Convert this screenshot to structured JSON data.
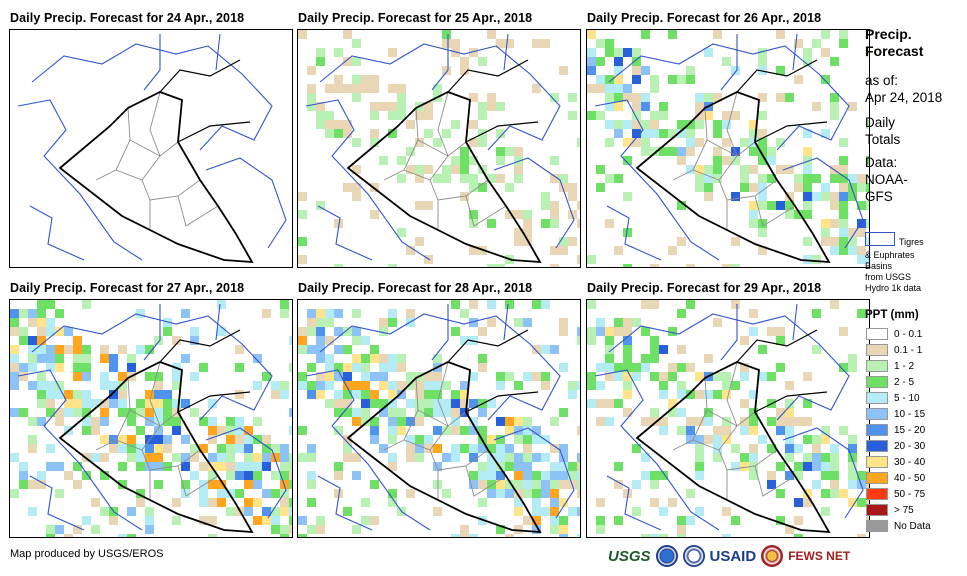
{
  "panels": [
    {
      "title": "Daily Precip. Forecast for 24 Apr., 2018",
      "rain_level": 0
    },
    {
      "title": "Daily Precip. Forecast for 25 Apr., 2018",
      "rain_level": 1
    },
    {
      "title": "Daily Precip. Forecast for 26 Apr., 2018",
      "rain_level": 2
    },
    {
      "title": "Daily Precip. Forecast for 27 Apr., 2018",
      "rain_level": 3
    },
    {
      "title": "Daily Precip. Forecast for 28 Apr., 2018",
      "rain_level": 3
    },
    {
      "title": "Daily Precip. Forecast for 29 Apr., 2018",
      "rain_level": 2
    }
  ],
  "legend": {
    "title_line1": "Precip.",
    "title_line2": "Forecast",
    "asof_label": "as of:",
    "asof_date": "Apr 24, 2018",
    "daily_line1": "Daily",
    "daily_line2": "Totals",
    "data_line1": "Data:",
    "data_line2": "NOAA-",
    "data_line3": "GFS",
    "basin_line1": "Tigres",
    "basin_line2": "& Euphrates",
    "basin_line3": "Basins",
    "basin_line4": "from USGS",
    "basin_line5": "Hydro 1k data",
    "ppt_title": "PPT (mm)",
    "classes": [
      {
        "label": "0 - 0.1",
        "color": "#ffffff"
      },
      {
        "label": "0.1 - 1",
        "color": "#e9d6b4"
      },
      {
        "label": "1 - 2",
        "color": "#b9f0b3"
      },
      {
        "label": "2 - 5",
        "color": "#6ee066"
      },
      {
        "label": "5 - 10",
        "color": "#b3ecf5"
      },
      {
        "label": "10 - 15",
        "color": "#8cc2f5"
      },
      {
        "label": "15 - 20",
        "color": "#4f93ec"
      },
      {
        "label": "20 - 30",
        "color": "#2860dc"
      },
      {
        "label": "30 - 40",
        "color": "#ffe48a"
      },
      {
        "label": "40 - 50",
        "color": "#ffa51f"
      },
      {
        "label": "50 - 75",
        "color": "#ff3a12"
      },
      {
        "label": "> 75",
        "color": "#a81818"
      },
      {
        "label": "No Data",
        "color": "#999999"
      }
    ]
  },
  "footer": {
    "credit": "Map produced by USGS/EROS"
  },
  "logos": {
    "usgs": "USGS",
    "usaid": "USAID",
    "fews": "FEWS NET"
  }
}
